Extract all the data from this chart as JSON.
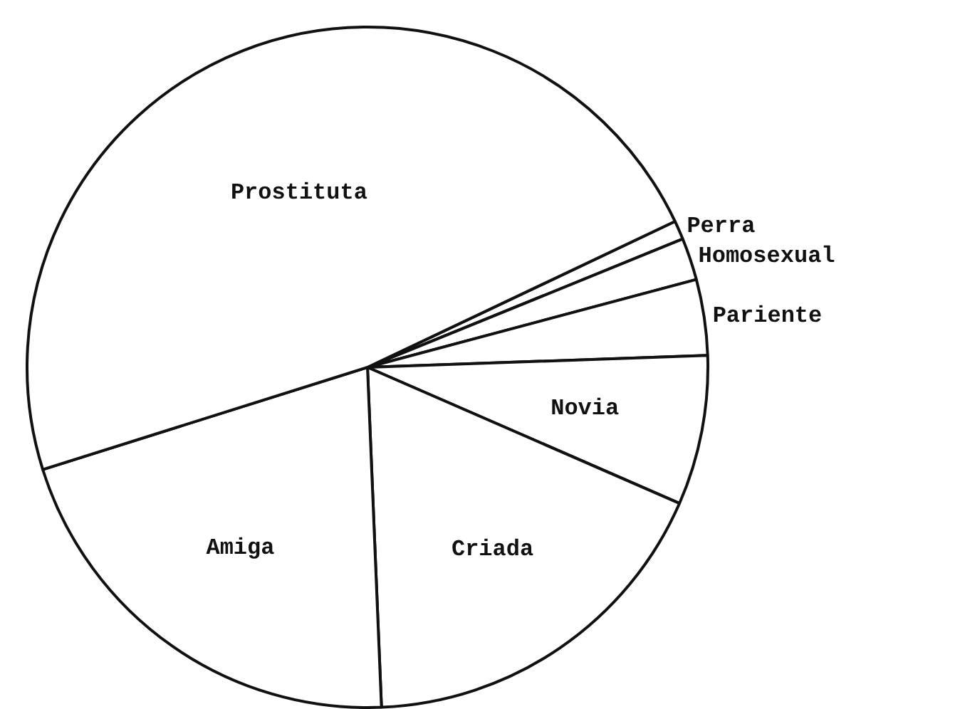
{
  "chart_data": {
    "type": "pie",
    "categories": [
      "Perra",
      "Homosexual",
      "Pariente",
      "Novia",
      "Criada",
      "Amiga",
      "Prostituta"
    ],
    "values": [
      0.9,
      2.0,
      3.6,
      7.1,
      17.8,
      20.8,
      47.8
    ],
    "colors": [
      "#ffffff",
      "#ffffff",
      "#ffffff",
      "#ffffff",
      "#ffffff",
      "#ffffff",
      "#ffffff"
    ],
    "legend": false
  }
}
